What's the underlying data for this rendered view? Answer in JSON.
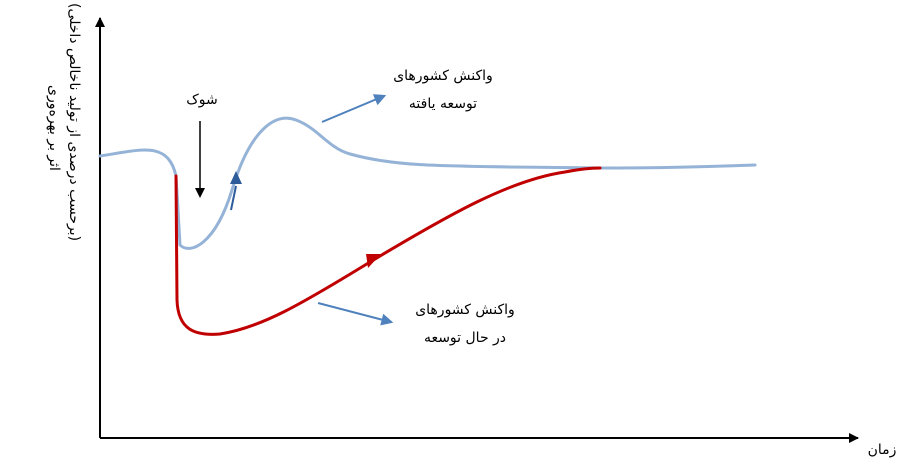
{
  "axes": {
    "x_label": "زمان",
    "y_label_line1": "اثر بر بهره‌وری",
    "y_label_line2": "(برحسب درصدی از تولید ناخالص داخلی)"
  },
  "labels": {
    "shock": "شوک",
    "developed_line1": "واکنش کشورهای",
    "developed_line2": "توسعه یافته",
    "developing_line1": "واکنش کشورهای",
    "developing_line2": "در حال توسعه"
  },
  "colors": {
    "developed_curve": "#95b3d7",
    "developing_curve": "#c00000",
    "pointer_arrow": "#4f81bd",
    "axis": "#000000"
  }
}
